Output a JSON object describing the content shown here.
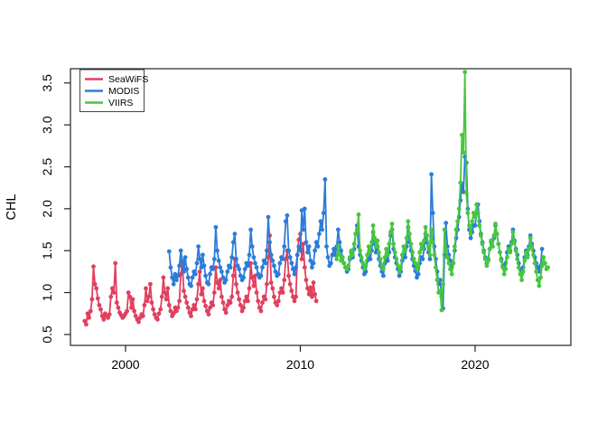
{
  "figure": {
    "background": "#ffffff",
    "axis_color": "#222222",
    "legend_border_color": "#444444"
  },
  "chart_data": {
    "type": "line",
    "title": "",
    "xlabel": "",
    "ylabel": "CHL",
    "grid": false,
    "legend_position": "top-left",
    "marker": "circle",
    "x_ticks": [
      2000,
      2010,
      2020
    ],
    "y_ticks": [
      0.5,
      1.0,
      1.5,
      2.0,
      2.5,
      3.0,
      3.5
    ],
    "xlim": [
      1996.85,
      2025.48
    ],
    "ylim": [
      0.37,
      3.67
    ],
    "x_units": "decimal years, monthly samples",
    "series": [
      {
        "name": "SeaWiFS",
        "color": "#E0405F",
        "start_year": 1997.6667,
        "step_years": 0.0833333,
        "values": [
          0.66,
          0.62,
          0.75,
          0.7,
          0.78,
          0.92,
          1.31,
          1.1,
          1.05,
          0.93,
          0.85,
          0.8,
          0.72,
          0.68,
          0.75,
          0.72,
          0.7,
          0.74,
          0.95,
          1.05,
          1.0,
          1.35,
          0.88,
          0.82,
          0.76,
          0.73,
          0.7,
          0.72,
          0.75,
          0.78,
          1.0,
          0.95,
          0.82,
          0.92,
          0.78,
          0.72,
          0.68,
          0.65,
          0.7,
          0.74,
          0.72,
          0.85,
          1.05,
          0.9,
          0.95,
          1.1,
          0.88,
          0.8,
          0.74,
          0.7,
          0.68,
          0.75,
          0.8,
          0.95,
          1.18,
          1.0,
          0.92,
          1.05,
          0.85,
          0.78,
          0.72,
          0.75,
          0.82,
          0.78,
          0.82,
          0.9,
          1.22,
          1.35,
          1.02,
          0.95,
          0.88,
          0.82,
          0.76,
          0.72,
          0.8,
          0.85,
          0.8,
          0.92,
          1.1,
          1.25,
          0.98,
          1.05,
          0.9,
          0.84,
          0.78,
          0.74,
          0.82,
          0.88,
          0.85,
          1.0,
          1.3,
          1.12,
          1.05,
          1.15,
          0.95,
          0.88,
          0.8,
          0.76,
          0.85,
          0.9,
          0.88,
          0.95,
          1.2,
          1.4,
          1.1,
          1.0,
          0.92,
          0.85,
          0.78,
          0.82,
          0.9,
          0.95,
          0.9,
          1.05,
          1.35,
          1.18,
          1.08,
          1.2,
          1.0,
          0.9,
          0.82,
          0.78,
          0.88,
          0.95,
          0.92,
          1.1,
          1.42,
          1.68,
          1.12,
          1.05,
          0.95,
          0.88,
          0.85,
          0.9,
          1.0,
          1.05,
          1.0,
          1.15,
          1.4,
          1.5,
          1.2,
          1.1,
          1.02,
          0.95,
          0.9,
          0.95,
          1.45,
          1.63,
          1.7,
          1.4,
          1.58,
          1.3,
          1.15,
          1.05,
          0.98,
          1.06,
          0.95,
          1.12,
          0.98,
          0.9
        ]
      },
      {
        "name": "MODIS",
        "color": "#2C7CD9",
        "start_year": 2002.5,
        "step_years": 0.0833333,
        "values": [
          1.49,
          1.3,
          1.18,
          1.1,
          1.22,
          1.15,
          1.2,
          1.32,
          1.5,
          1.38,
          1.25,
          1.42,
          1.28,
          1.18,
          1.1,
          1.08,
          1.18,
          1.25,
          1.22,
          1.35,
          1.55,
          1.4,
          1.3,
          1.45,
          1.32,
          1.2,
          1.12,
          1.1,
          1.22,
          1.3,
          1.28,
          1.4,
          1.78,
          1.5,
          1.38,
          1.3,
          1.25,
          1.18,
          1.12,
          1.15,
          1.25,
          1.32,
          1.3,
          1.42,
          1.6,
          1.7,
          1.4,
          1.32,
          1.28,
          1.2,
          1.15,
          1.18,
          1.28,
          1.35,
          1.32,
          1.45,
          1.75,
          1.55,
          1.42,
          1.35,
          1.3,
          1.22,
          1.18,
          1.2,
          1.3,
          1.38,
          1.35,
          1.5,
          1.9,
          1.6,
          1.45,
          1.38,
          1.32,
          1.25,
          1.2,
          1.22,
          1.35,
          1.42,
          1.4,
          1.55,
          1.85,
          1.92,
          1.5,
          1.42,
          1.35,
          1.28,
          1.22,
          1.3,
          1.45,
          1.55,
          1.5,
          1.98,
          1.75,
          2.0,
          1.6,
          1.48,
          1.55,
          1.38,
          1.3,
          1.35,
          1.5,
          1.6,
          1.55,
          1.7,
          1.85,
          1.75,
          1.95,
          2.35,
          1.55,
          1.42,
          1.32,
          1.35,
          1.45,
          1.52,
          1.45,
          1.55,
          1.75,
          1.6,
          1.5,
          1.42,
          1.35,
          1.3,
          1.25,
          1.28,
          1.4,
          1.48,
          1.42,
          1.52,
          1.7,
          1.8,
          1.55,
          1.45,
          1.38,
          1.3,
          1.22,
          1.25,
          1.38,
          1.45,
          1.4,
          1.5,
          1.72,
          1.58,
          1.48,
          1.55,
          1.4,
          1.32,
          1.25,
          1.2,
          1.35,
          1.42,
          1.38,
          1.48,
          1.68,
          1.75,
          1.52,
          1.42,
          1.35,
          1.28,
          1.2,
          1.25,
          1.38,
          1.45,
          1.42,
          1.55,
          1.78,
          1.6,
          1.5,
          1.4,
          1.32,
          1.26,
          1.18,
          1.22,
          1.35,
          1.42,
          1.4,
          1.52,
          1.7,
          1.6,
          1.48,
          1.4,
          2.41,
          1.95,
          1.55,
          1.4,
          1.25,
          1.1,
          1.15,
          0.95,
          0.81,
          1.45,
          1.83,
          1.55,
          1.45,
          1.38,
          1.3,
          1.35,
          1.5,
          1.65,
          1.75,
          1.9,
          2.1,
          2.3,
          2.2,
          2.62,
          2.55,
          2.0,
          1.75,
          1.65,
          1.72,
          1.8,
          1.8,
          1.95,
          2.05,
          1.85,
          1.7,
          1.6,
          1.5,
          1.42,
          1.35,
          1.4,
          1.52,
          1.6,
          1.55,
          1.65,
          1.8,
          1.7,
          1.58,
          1.48,
          1.4,
          1.32,
          1.28,
          1.35,
          1.48,
          1.55,
          1.5,
          1.6,
          1.75,
          1.62,
          1.52,
          1.45,
          1.35,
          1.28,
          1.22,
          1.3,
          1.42,
          1.5,
          1.45,
          1.55,
          1.68,
          1.58,
          1.5,
          1.42,
          1.35,
          1.3,
          1.25,
          1.32,
          1.52
        ]
      },
      {
        "name": "VIIRS",
        "color": "#47C73F",
        "start_year": 2012.0833,
        "step_years": 0.0833333,
        "values": [
          1.4,
          1.55,
          1.45,
          1.38,
          1.42,
          1.35,
          1.3,
          1.28,
          1.32,
          1.42,
          1.5,
          1.45,
          1.58,
          1.7,
          1.75,
          1.93,
          1.5,
          1.42,
          1.35,
          1.28,
          1.32,
          1.45,
          1.55,
          1.48,
          1.6,
          1.8,
          1.65,
          1.55,
          1.62,
          1.48,
          1.4,
          1.32,
          1.28,
          1.42,
          1.52,
          1.45,
          1.58,
          1.72,
          1.82,
          1.58,
          1.48,
          1.4,
          1.32,
          1.25,
          1.3,
          1.45,
          1.55,
          1.5,
          1.65,
          1.85,
          1.7,
          1.58,
          1.48,
          1.4,
          1.35,
          1.28,
          1.32,
          1.48,
          1.58,
          1.52,
          1.62,
          1.78,
          1.68,
          1.55,
          1.45,
          1.75,
          1.6,
          1.45,
          1.3,
          1.15,
          1.0,
          1.02,
          0.79,
          1.1,
          1.75,
          1.52,
          1.42,
          1.35,
          1.28,
          1.22,
          1.35,
          1.55,
          1.75,
          1.85,
          2.0,
          2.31,
          2.88,
          2.67,
          3.63,
          2.19,
          1.95,
          1.8,
          1.7,
          1.85,
          1.95,
          1.9,
          2.05,
          1.95,
          1.8,
          1.68,
          1.58,
          1.48,
          1.4,
          1.32,
          1.38,
          1.52,
          1.62,
          1.55,
          1.68,
          1.82,
          1.7,
          1.58,
          1.48,
          1.38,
          1.3,
          1.22,
          1.28,
          1.42,
          1.52,
          1.48,
          1.58,
          1.72,
          1.6,
          1.5,
          1.4,
          1.3,
          1.22,
          1.15,
          1.25,
          1.38,
          1.48,
          1.42,
          1.52,
          1.65,
          1.55,
          1.45,
          1.35,
          1.25,
          1.15,
          1.08,
          1.18,
          1.32,
          1.42,
          1.35,
          1.28,
          1.3
        ]
      }
    ]
  }
}
